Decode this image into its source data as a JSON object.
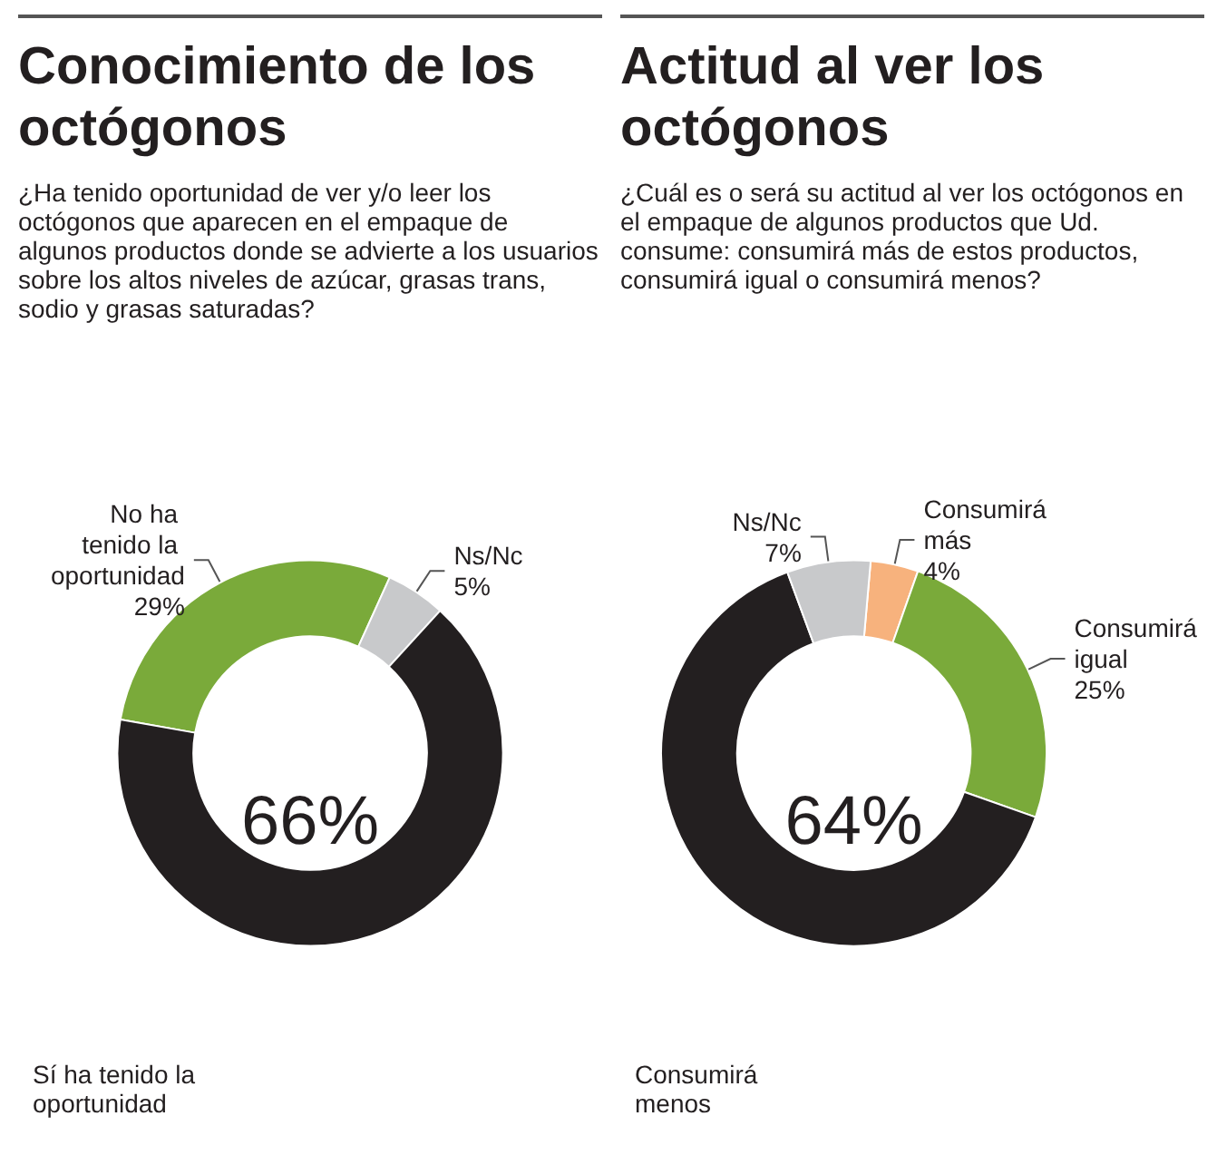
{
  "chart_data": [
    {
      "type": "donut",
      "title": "Conocimiento de los octógonos",
      "subtitle": "¿Ha tenido oportunidad de ver y/o leer los octógonos que aparecen en el empaque de algunos productos donde se advierte a los usuarios sobre los altos niveles de azúcar, grasas trans, sodio y grasas saturadas?",
      "categories": [
        "No ha tenido la oportunidad",
        "Ns/Nc",
        "Sí ha tenido la oportunidad"
      ],
      "values": [
        29,
        5,
        66
      ],
      "value_labels": [
        "29%",
        "5%",
        "66%"
      ],
      "colors": [
        "#7aaa3a",
        "#c8c9cb",
        "#231f20"
      ]
    },
    {
      "type": "donut",
      "title": "Actitud al ver los octógonos",
      "subtitle": "¿Cuál es o será su actitud al ver los octógonos en el empaque de algunos productos que Ud. consume: consumirá más de estos productos, consumirá igual o consumirá menos?",
      "categories": [
        "Consumirá más",
        "Consumirá igual",
        "Consumirá menos",
        "Ns/Nc"
      ],
      "values": [
        4,
        25,
        64,
        7
      ],
      "value_labels": [
        "4%",
        "25%",
        "64%",
        "7%"
      ],
      "colors": [
        "#f7b27d",
        "#7aaa3a",
        "#231f20",
        "#c8c9cb"
      ]
    }
  ]
}
